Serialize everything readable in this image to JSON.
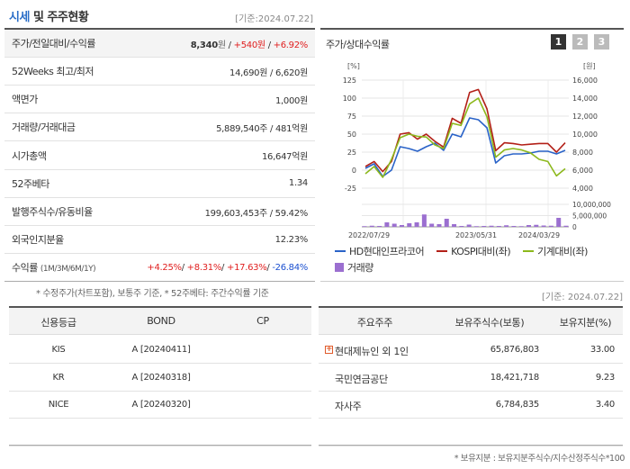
{
  "header": {
    "title_highlight": "시세",
    "title_rest": " 및 주주현황",
    "base_date": "[기준:2024.07.22]"
  },
  "summary": {
    "price_label": "주가/전일대비/수익률",
    "price": "8,340",
    "price_unit": "원",
    "change": "+540",
    "change_unit": "원",
    "change_rate": "+6.92%",
    "sep": " / ",
    "rows": [
      {
        "label": "52Weeks 최고/최저",
        "value": "14,690원 / 6,620원"
      },
      {
        "label": "액면가",
        "value": "1,000원"
      },
      {
        "label": "거래량/거래대금",
        "value": "5,889,540주 / 481억원"
      },
      {
        "label": "시가총액",
        "value": "16,647억원"
      },
      {
        "label": "52주베타",
        "value": "1.34"
      },
      {
        "label": "발행주식수/유동비율",
        "value": "199,603,453주 / 59.42%"
      },
      {
        "label": "외국인지분율",
        "value": "12.23%"
      }
    ],
    "returns_label": "수익률",
    "returns_period": "(1M/3M/6M/1Y)",
    "returns": [
      "+4.25%",
      "+8.31%",
      "+17.63%",
      "-26.84%"
    ],
    "footnote": "* 수정주가(차트포함), 보통주 기준, * 52주베타: 주간수익률 기준"
  },
  "chart": {
    "title": "주가/상대수익률",
    "pages": [
      "1",
      "2",
      "3"
    ],
    "left_unit": "[%]",
    "right_unit": "[원]",
    "left_ticks": [
      "125",
      "100",
      "75",
      "50",
      "25",
      "0",
      "-25"
    ],
    "right_ticks": [
      "16,000",
      "14,000",
      "12,000",
      "10,000",
      "8,000",
      "6,000",
      "4,000"
    ],
    "vol_ticks": [
      "10,000,000",
      "5,000,000",
      "0"
    ],
    "x_labels": [
      "2022/07/29",
      "2023/05/31",
      "2024/03/29"
    ],
    "legend": [
      {
        "name": "HD현대인프라코어",
        "color": "#2a63c8"
      },
      {
        "name": "KOSPI대비(좌)",
        "color": "#b32018"
      },
      {
        "name": "기계대비(좌)",
        "color": "#8cb81c"
      },
      {
        "name": "거래량",
        "color": "#9b6fd0"
      }
    ]
  },
  "chart_data": {
    "type": "line",
    "ylim_left": [
      -25,
      125
    ],
    "ylim_right": [
      4000,
      16000
    ],
    "series": [
      {
        "name": "HD현대인프라코어",
        "axis": "right",
        "values": [
          6200,
          6700,
          5300,
          6000,
          8600,
          8400,
          8100,
          8600,
          9000,
          8200,
          10000,
          9700,
          11800,
          11600,
          10700,
          6800,
          7600,
          7800,
          7800,
          7900,
          8100,
          8100,
          7800,
          8200
        ]
      },
      {
        "name": "KOSPI대비(좌)",
        "axis": "left",
        "values": [
          5,
          12,
          -2,
          12,
          50,
          52,
          43,
          50,
          40,
          32,
          72,
          65,
          108,
          112,
          85,
          27,
          38,
          37,
          35,
          36,
          37,
          37,
          25,
          38
        ]
      },
      {
        "name": "기계대비(좌)",
        "axis": "left",
        "values": [
          -5,
          5,
          -10,
          15,
          45,
          50,
          47,
          46,
          35,
          30,
          65,
          62,
          92,
          100,
          74,
          18,
          28,
          30,
          28,
          24,
          15,
          12,
          -8,
          2
        ]
      }
    ],
    "volume": [
      300000,
      500000,
      400000,
      2000000,
      1400000,
      800000,
      1600000,
      2000000,
      5500000,
      1400000,
      1200000,
      3600000,
      1200000,
      400000,
      1000000,
      300000,
      400000,
      500000,
      400000,
      700000,
      400000,
      300000,
      800000,
      900000,
      600000,
      500000,
      4000000,
      500000
    ],
    "vol_ylim": [
      0,
      10000000
    ]
  },
  "credit": {
    "headers": [
      "신용등급",
      "BOND",
      "CP"
    ],
    "rows": [
      {
        "agency": "KIS",
        "bond": "A [20240411]",
        "cp": ""
      },
      {
        "agency": "KR",
        "bond": "A [20240318]",
        "cp": ""
      },
      {
        "agency": "NICE",
        "bond": "A [20240320]",
        "cp": ""
      },
      {
        "agency": "",
        "bond": "",
        "cp": ""
      }
    ]
  },
  "holders": {
    "base_date": "[기준: 2024.07.22]",
    "headers": [
      "주요주주",
      "보유주식수(보통)",
      "보유지분(%)"
    ],
    "rows": [
      {
        "name": "현대제뉴인 외 1인",
        "shares": "65,876,803",
        "pct": "33.00",
        "expand": true
      },
      {
        "name": "국민연금공단",
        "shares": "18,421,718",
        "pct": "9.23",
        "expand": false
      },
      {
        "name": "자사주",
        "shares": "6,784,835",
        "pct": "3.40",
        "expand": false
      },
      {
        "name": "",
        "shares": "",
        "pct": "",
        "expand": false
      }
    ],
    "footnote": "* 보유지분 : 보유지분주식수/지수산정주식수*100"
  }
}
